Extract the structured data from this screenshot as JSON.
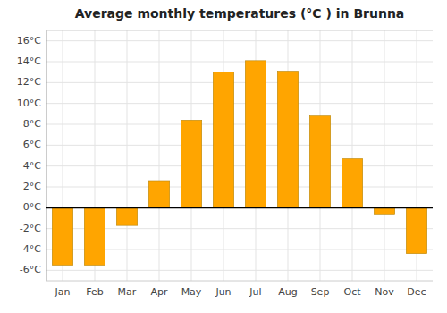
{
  "chart_data": {
    "type": "bar",
    "title": "Average monthly temperatures (°C ) in Brunna",
    "categories": [
      "Jan",
      "Feb",
      "Mar",
      "Apr",
      "May",
      "Jun",
      "Jul",
      "Aug",
      "Sep",
      "Oct",
      "Nov",
      "Dec"
    ],
    "values": [
      -5.5,
      -5.5,
      -1.7,
      2.6,
      8.4,
      13.0,
      14.1,
      13.1,
      8.8,
      4.7,
      -0.6,
      -4.4
    ],
    "color": "#FFA500",
    "ylim": [
      -7,
      17
    ],
    "yticks": [
      {
        "value": -6,
        "label": "-6°C"
      },
      {
        "value": -4,
        "label": "-4°C"
      },
      {
        "value": -2,
        "label": "-2°C"
      },
      {
        "value": 0,
        "label": "0°C"
      },
      {
        "value": 2,
        "label": "2°C"
      },
      {
        "value": 4,
        "label": "4°C"
      },
      {
        "value": 6,
        "label": "6°C"
      },
      {
        "value": 8,
        "label": "8°C"
      },
      {
        "value": 10,
        "label": "10°C"
      },
      {
        "value": 12,
        "label": "12°C"
      },
      {
        "value": 14,
        "label": "14°C"
      },
      {
        "value": 16,
        "label": "16°C"
      }
    ],
    "grid": true
  }
}
